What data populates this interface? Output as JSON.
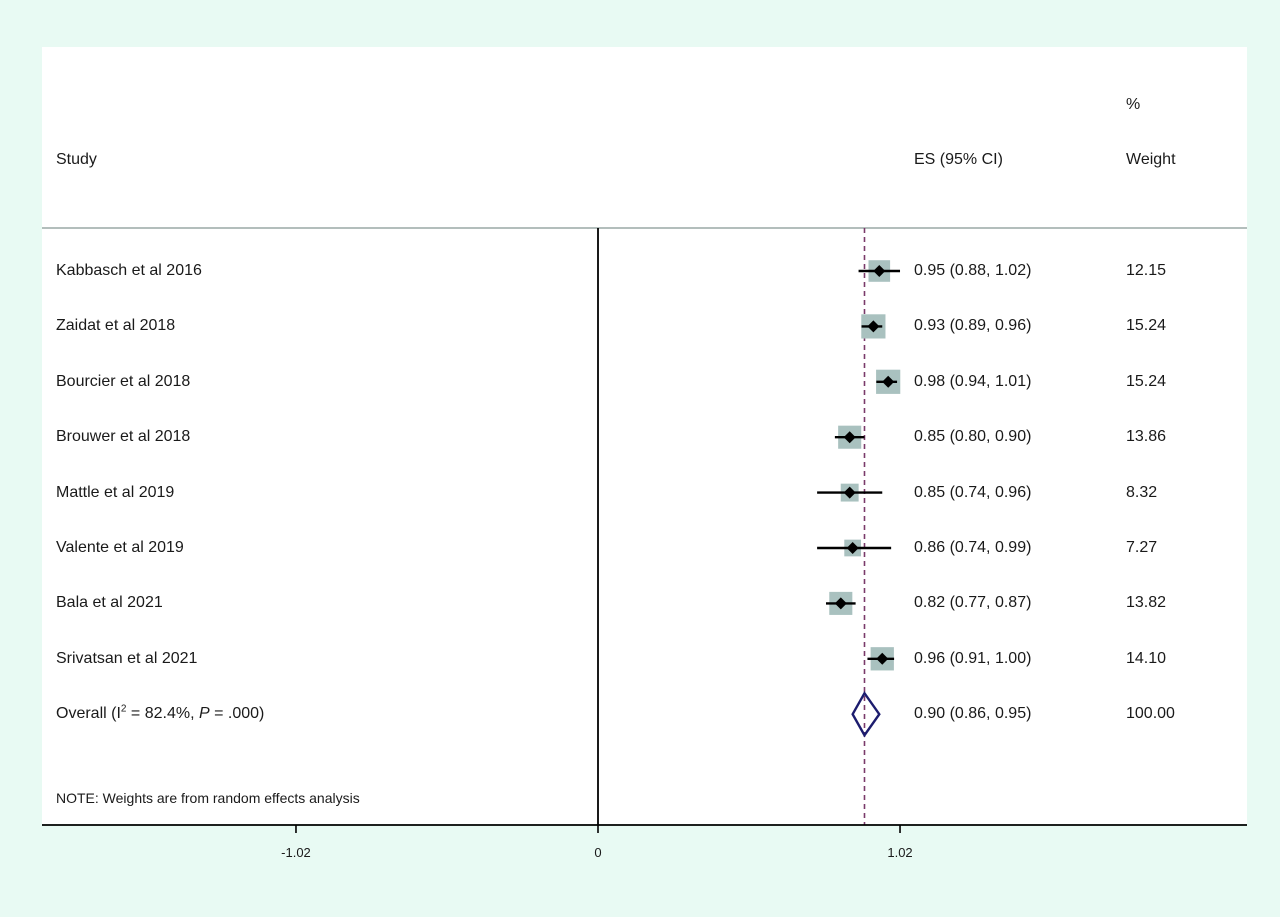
{
  "header": {
    "study_label": "Study",
    "es_label": "ES (95% CI)",
    "weight_label_top": "%",
    "weight_label": "Weight"
  },
  "note": "NOTE: Weights are from random effects analysis",
  "colors": {
    "background": "#e8faf3",
    "panel": "#ffffff",
    "weight_box": "#a9c1bf",
    "point": "#000000",
    "overall_diamond": "#1c1c6e",
    "reference_line": "#7a3a6a"
  },
  "chart_data": {
    "type": "forest",
    "x_ticks": [
      "-1.02",
      "0",
      "1.02"
    ],
    "x_tick_values": [
      -1.02,
      0,
      1.02
    ],
    "null_line": 0,
    "overall_line": 0.9,
    "studies": [
      {
        "name": "Kabbasch et al 2016",
        "es": 0.95,
        "lo": 0.88,
        "hi": 1.02,
        "es_text": "0.95 (0.88, 1.02)",
        "weight": 12.15,
        "weight_text": "12.15"
      },
      {
        "name": "Zaidat et al 2018",
        "es": 0.93,
        "lo": 0.89,
        "hi": 0.96,
        "es_text": "0.93 (0.89, 0.96)",
        "weight": 15.24,
        "weight_text": "15.24"
      },
      {
        "name": "Bourcier et al 2018",
        "es": 0.98,
        "lo": 0.94,
        "hi": 1.01,
        "es_text": "0.98 (0.94, 1.01)",
        "weight": 15.24,
        "weight_text": "15.24"
      },
      {
        "name": "Brouwer et al 2018",
        "es": 0.85,
        "lo": 0.8,
        "hi": 0.9,
        "es_text": "0.85 (0.80, 0.90)",
        "weight": 13.86,
        "weight_text": "13.86"
      },
      {
        "name": "Mattle et al 2019",
        "es": 0.85,
        "lo": 0.74,
        "hi": 0.96,
        "es_text": "0.85 (0.74, 0.96)",
        "weight": 8.32,
        "weight_text": "8.32"
      },
      {
        "name": "Valente et al 2019",
        "es": 0.86,
        "lo": 0.74,
        "hi": 0.99,
        "es_text": "0.86 (0.74, 0.99)",
        "weight": 7.27,
        "weight_text": "7.27"
      },
      {
        "name": "Bala et al 2021",
        "es": 0.82,
        "lo": 0.77,
        "hi": 0.87,
        "es_text": "0.82 (0.77, 0.87)",
        "weight": 13.82,
        "weight_text": "13.82"
      },
      {
        "name": "Srivatsan et al 2021",
        "es": 0.96,
        "lo": 0.91,
        "hi": 1.0,
        "es_text": "0.96 (0.91, 1.00)",
        "weight": 14.1,
        "weight_text": "14.10"
      }
    ],
    "overall": {
      "label_prefix": "Overall  (I",
      "label_sup": "2",
      "label_mid": " = 82.4%, ",
      "label_p": "P",
      "label_suffix": " = .000)",
      "es": 0.9,
      "lo": 0.86,
      "hi": 0.95,
      "es_text": "0.90 (0.86, 0.95)",
      "weight_text": "100.00"
    }
  }
}
